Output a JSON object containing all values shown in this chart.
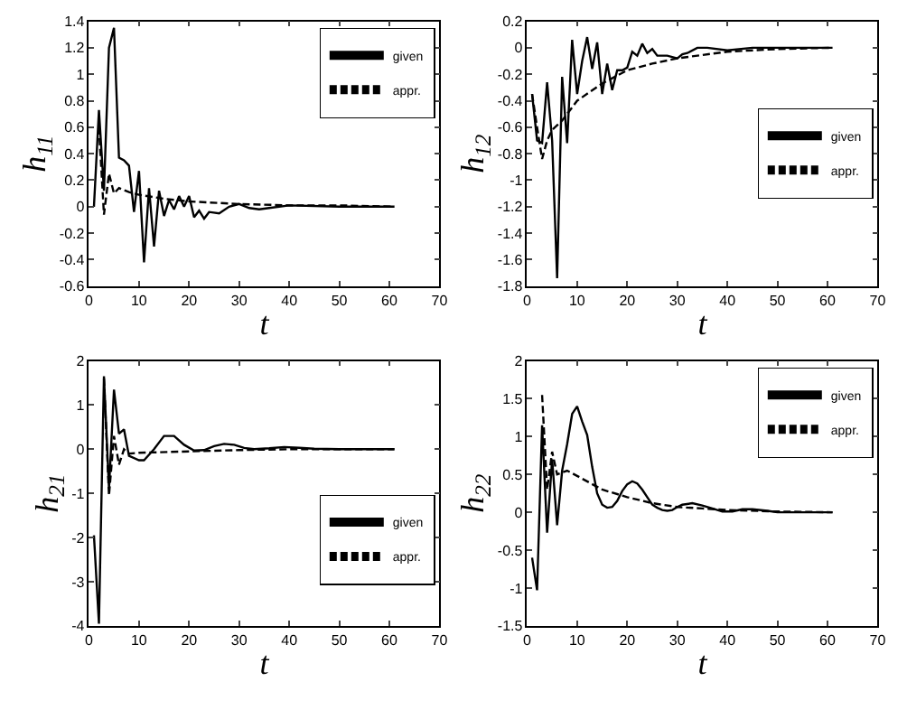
{
  "chart_data": [
    {
      "type": "line",
      "xlabel": "t",
      "ylabel": "h$_{11}$",
      "xlim": [
        0,
        70
      ],
      "xticks": [
        0,
        10,
        20,
        30,
        40,
        50,
        60,
        70
      ],
      "ylim": [
        -0.6,
        1.4
      ],
      "yticks": [
        -0.6,
        -0.4,
        -0.2,
        0,
        0.2,
        0.4,
        0.6,
        0.8,
        1,
        1.2,
        1.4
      ],
      "legend": "top right",
      "series": [
        {
          "name": "given",
          "color": "#000000",
          "line_style": "solid",
          "x": [
            1,
            2,
            3,
            4,
            5,
            6,
            7,
            8,
            9,
            10,
            11,
            12,
            13,
            14,
            15,
            16,
            17,
            18,
            19,
            20,
            21,
            22,
            23,
            24,
            26,
            28,
            30,
            32,
            34,
            36,
            40,
            50,
            61
          ],
          "values": [
            0,
            0.73,
            0.12,
            1.2,
            1.35,
            0.37,
            0.35,
            0.31,
            -0.04,
            0.27,
            -0.42,
            0.14,
            -0.3,
            0.12,
            -0.07,
            0.05,
            -0.02,
            0.08,
            0,
            0.08,
            -0.08,
            -0.03,
            -0.09,
            -0.04,
            -0.05,
            0,
            0.02,
            -0.01,
            -0.02,
            -0.01,
            0.01,
            0,
            0
          ]
        },
        {
          "name": "appr.",
          "color": "#000000",
          "line_style": "dashed",
          "x": [
            2,
            3,
            4,
            5,
            6,
            8,
            10,
            15,
            20,
            30,
            40,
            50,
            61
          ],
          "values": [
            0.6,
            -0.06,
            0.25,
            0.1,
            0.14,
            0.11,
            0.09,
            0.06,
            0.04,
            0.02,
            0.01,
            0.01,
            0
          ]
        }
      ]
    },
    {
      "type": "line",
      "xlabel": "t",
      "ylabel": "h$_{12}$",
      "xlim": [
        0,
        70
      ],
      "xticks": [
        0,
        10,
        20,
        30,
        40,
        50,
        60,
        70
      ],
      "ylim": [
        -1.8,
        0.2
      ],
      "yticks": [
        -1.8,
        -1.6,
        -1.4,
        -1.2,
        -1,
        -0.8,
        -0.6,
        -0.4,
        -0.2,
        0,
        0.2
      ],
      "legend": "right",
      "series": [
        {
          "name": "given",
          "color": "#000000",
          "line_style": "solid",
          "x": [
            1,
            2,
            3,
            4,
            5,
            6,
            7,
            8,
            9,
            10,
            11,
            12,
            13,
            14,
            15,
            16,
            17,
            18,
            19,
            20,
            21,
            22,
            23,
            24,
            25,
            26,
            28,
            30,
            31,
            32,
            34,
            36,
            40,
            45,
            50,
            61
          ],
          "values": [
            -0.35,
            -0.7,
            -0.72,
            -0.26,
            -0.7,
            -1.74,
            -0.22,
            -0.72,
            0.06,
            -0.35,
            -0.1,
            0.08,
            -0.16,
            0.04,
            -0.35,
            -0.12,
            -0.32,
            -0.17,
            -0.17,
            -0.15,
            -0.03,
            -0.06,
            0.03,
            -0.04,
            -0.01,
            -0.06,
            -0.06,
            -0.08,
            -0.05,
            -0.04,
            0,
            0,
            -0.02,
            0,
            0,
            0
          ]
        },
        {
          "name": "appr.",
          "color": "#000000",
          "line_style": "dashed",
          "x": [
            1,
            2,
            3,
            4,
            5,
            7,
            10,
            15,
            20,
            25,
            30,
            40,
            50,
            61
          ],
          "values": [
            -0.35,
            -0.6,
            -0.84,
            -0.7,
            -0.62,
            -0.55,
            -0.4,
            -0.27,
            -0.17,
            -0.12,
            -0.08,
            -0.03,
            -0.01,
            0
          ]
        }
      ]
    },
    {
      "type": "line",
      "xlabel": "t",
      "ylabel": "h$_{21}$",
      "xlim": [
        0,
        70
      ],
      "xticks": [
        0,
        10,
        20,
        30,
        40,
        50,
        60,
        70
      ],
      "ylim": [
        -4,
        2
      ],
      "yticks": [
        -4,
        -3,
        -2,
        -1,
        0,
        1,
        2
      ],
      "legend": "bottom right",
      "series": [
        {
          "name": "given",
          "color": "#000000",
          "line_style": "solid",
          "x": [
            1,
            2,
            3,
            4,
            5,
            6,
            7,
            8,
            10,
            11,
            13,
            15,
            17,
            19,
            21,
            23,
            25,
            27,
            29,
            31,
            33,
            36,
            39,
            42,
            45,
            50,
            61
          ],
          "values": [
            -1.95,
            -3.95,
            1.65,
            -0.9,
            1.35,
            0.35,
            0.45,
            -0.15,
            -0.25,
            -0.25,
            0,
            0.3,
            0.3,
            0.1,
            -0.03,
            -0.02,
            0.07,
            0.12,
            0.1,
            0.03,
            0,
            0.02,
            0.05,
            0.03,
            0.01,
            0,
            0
          ]
        },
        {
          "name": "appr.",
          "color": "#000000",
          "line_style": "dashed",
          "x": [
            3,
            4,
            5,
            6,
            7,
            8,
            10,
            20,
            30,
            40,
            61
          ],
          "values": [
            1.6,
            -1.05,
            0.3,
            -0.35,
            0,
            -0.1,
            -0.08,
            -0.05,
            -0.02,
            0,
            0
          ]
        }
      ]
    },
    {
      "type": "line",
      "xlabel": "t",
      "ylabel": "h$_{22}$",
      "xlim": [
        0,
        70
      ],
      "xticks": [
        0,
        10,
        20,
        30,
        40,
        50,
        60,
        70
      ],
      "ylim": [
        -1.5,
        2
      ],
      "yticks": [
        -1.5,
        -1,
        -0.5,
        0,
        0.5,
        1,
        1.5,
        2
      ],
      "legend": "top right",
      "series": [
        {
          "name": "given",
          "color": "#000000",
          "line_style": "solid",
          "x": [
            1,
            2,
            3,
            4,
            5,
            6,
            7,
            8,
            9,
            10,
            11,
            12,
            13,
            14,
            15,
            16,
            17,
            18,
            19,
            20,
            21,
            22,
            23,
            24,
            25,
            26,
            27,
            28,
            29,
            30,
            31,
            33,
            35,
            37,
            39,
            41,
            43,
            45,
            48,
            50,
            55,
            61
          ],
          "values": [
            -0.6,
            -1.03,
            1.15,
            -0.27,
            0.7,
            -0.17,
            0.55,
            0.9,
            1.3,
            1.4,
            1.2,
            1.02,
            0.6,
            0.25,
            0.1,
            0.06,
            0.07,
            0.15,
            0.28,
            0.37,
            0.41,
            0.38,
            0.3,
            0.2,
            0.1,
            0.06,
            0.03,
            0.02,
            0.03,
            0.07,
            0.1,
            0.12,
            0.09,
            0.05,
            0.01,
            0.01,
            0.04,
            0.04,
            0.02,
            0,
            0,
            0
          ]
        },
        {
          "name": "appr.",
          "color": "#000000",
          "line_style": "dashed",
          "x": [
            3,
            4,
            5,
            6,
            8,
            10,
            15,
            20,
            25,
            30,
            35,
            40,
            50,
            61
          ],
          "values": [
            1.55,
            0.3,
            0.8,
            0.5,
            0.55,
            0.48,
            0.3,
            0.2,
            0.12,
            0.07,
            0.05,
            0.03,
            0.01,
            0
          ]
        }
      ]
    }
  ]
}
